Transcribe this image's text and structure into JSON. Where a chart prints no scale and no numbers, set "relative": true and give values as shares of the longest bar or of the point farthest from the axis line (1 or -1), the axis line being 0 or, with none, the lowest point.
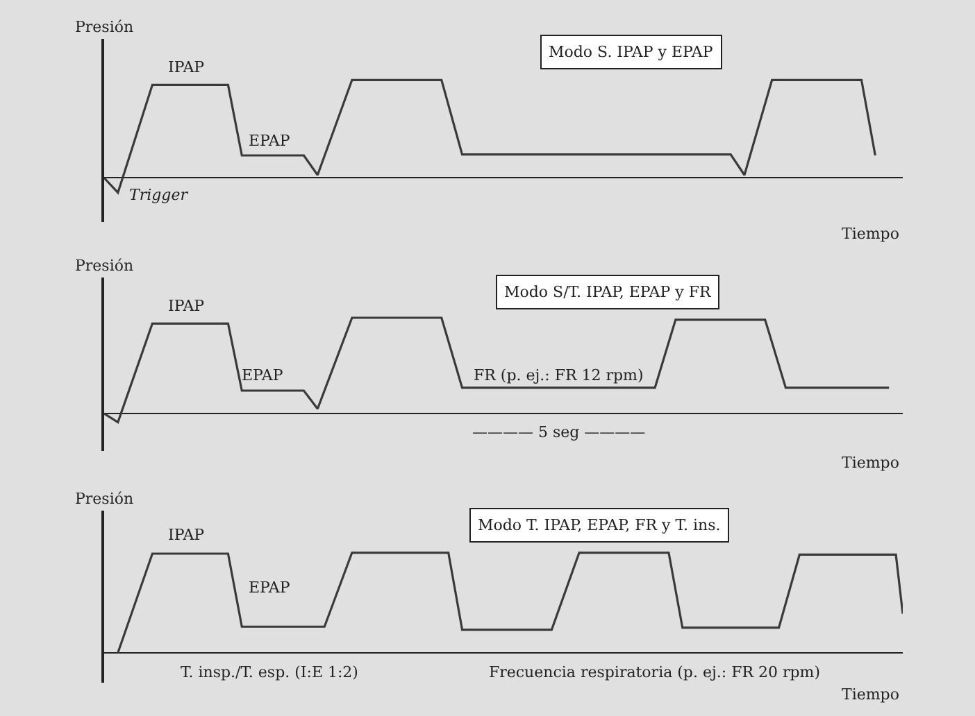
{
  "chart_data": [
    {
      "type": "line",
      "relative": true,
      "title": "Modo S. IPAP y EPAP",
      "xlabel": "Tiempo",
      "ylabel": "Presión",
      "annotations": [
        "IPAP",
        "EPAP",
        "Trigger"
      ],
      "categories": [
        null,
        null,
        null,
        null,
        null,
        null,
        null,
        null,
        null,
        null,
        null,
        null,
        null,
        null,
        null,
        null,
        null,
        null,
        null,
        null,
        null,
        null,
        null,
        null,
        null,
        null,
        null,
        null,
        null,
        null,
        null,
        null,
        null,
        null,
        null,
        null,
        null,
        null,
        null,
        null,
        null,
        null,
        null,
        null,
        null,
        null,
        null,
        null,
        null,
        null,
        null,
        null,
        null,
        null,
        null,
        null,
        null,
        null,
        null,
        null,
        null,
        null,
        null,
        null,
        null,
        null,
        null,
        null,
        null,
        null,
        null,
        null,
        null,
        null,
        null,
        null,
        null,
        null,
        null,
        null,
        null,
        null,
        null,
        null,
        null,
        null,
        null,
        null,
        null,
        null,
        null,
        null,
        null,
        null,
        null,
        null,
        null,
        null,
        null,
        null,
        null,
        null,
        null,
        null,
        null,
        null,
        null,
        null,
        null,
        null,
        null,
        null,
        null,
        null,
        null,
        null,
        null
      ],
      "series": [
        {
          "color": "#3a3a3a",
          "values": [
            0,
            null,
            -0.15,
            null,
            null,
            null,
            null,
            0.95,
            null,
            null,
            null,
            null,
            null,
            null,
            null,
            null,
            null,
            null,
            0.95,
            null,
            0.23,
            null,
            null,
            null,
            null,
            null,
            null,
            null,
            null,
            0.23,
            null,
            0.03,
            null,
            null,
            null,
            null,
            1,
            null,
            null,
            null,
            null,
            null,
            null,
            null,
            null,
            null,
            null,
            null,
            null,
            1,
            null,
            null,
            0.24,
            null,
            null,
            null,
            null,
            null,
            null,
            null,
            null,
            null,
            null,
            null,
            null,
            null,
            null,
            null,
            null,
            null,
            null,
            null,
            null,
            null,
            null,
            null,
            null,
            null,
            null,
            null,
            null,
            null,
            null,
            null,
            null,
            null,
            null,
            null,
            null,
            null,
            null,
            0.24,
            null,
            0.03,
            null,
            null,
            null,
            1,
            null,
            null,
            null,
            null,
            null,
            null,
            null,
            null,
            null,
            null,
            null,
            null,
            1,
            null,
            0.23,
            null,
            null,
            null,
            null
          ]
        }
      ]
    },
    {
      "type": "line",
      "relative": true,
      "title": "Modo S/T. IPAP, EPAP y FR",
      "xlabel": "Tiempo",
      "ylabel": "Presión",
      "annotations": [
        "IPAP",
        "EPAP",
        "FR (p. ej.: FR 12 rpm)",
        "———— 5 seg ————"
      ],
      "categories": [
        null,
        null,
        null,
        null,
        null,
        null,
        null,
        null,
        null,
        null,
        null,
        null,
        null,
        null,
        null,
        null,
        null,
        null,
        null,
        null,
        null,
        null,
        null,
        null,
        null,
        null,
        null,
        null,
        null,
        null,
        null,
        null,
        null,
        null,
        null,
        null,
        null,
        null,
        null,
        null,
        null,
        null,
        null,
        null,
        null,
        null,
        null,
        null,
        null,
        null,
        null,
        null,
        null,
        null,
        null,
        null,
        null,
        null,
        null,
        null,
        null,
        null,
        null,
        null,
        null,
        null,
        null,
        null,
        null,
        null,
        null,
        null,
        null,
        null,
        null,
        null,
        null,
        null,
        null,
        null,
        null,
        null,
        null,
        null,
        null,
        null,
        null,
        null,
        null,
        null,
        null,
        null,
        null,
        null,
        null,
        null,
        null,
        null,
        null,
        null,
        null,
        null,
        null,
        null,
        null,
        null,
        null,
        null,
        null,
        null,
        null,
        null,
        null,
        null,
        null,
        null,
        null
      ],
      "series": [
        {
          "color": "#3a3a3a",
          "values": [
            0,
            null,
            -0.09,
            null,
            null,
            null,
            null,
            0.94,
            null,
            null,
            null,
            null,
            null,
            null,
            null,
            null,
            null,
            null,
            0.94,
            null,
            0.24,
            null,
            null,
            null,
            null,
            null,
            null,
            null,
            null,
            0.24,
            null,
            0.05,
            null,
            null,
            null,
            null,
            1,
            null,
            null,
            null,
            null,
            null,
            null,
            null,
            null,
            null,
            null,
            null,
            null,
            1,
            null,
            null,
            0.27,
            null,
            null,
            null,
            null,
            null,
            null,
            null,
            null,
            null,
            null,
            null,
            null,
            null,
            null,
            null,
            null,
            null,
            null,
            null,
            null,
            null,
            null,
            null,
            null,
            null,
            null,
            null,
            0.27,
            null,
            null,
            0.98,
            null,
            null,
            null,
            null,
            null,
            null,
            null,
            null,
            null,
            null,
            null,
            null,
            0.98,
            null,
            null,
            0.27,
            null,
            null,
            null,
            null,
            null,
            null,
            null,
            null,
            null,
            null,
            null,
            null,
            null,
            null,
            0.27,
            null,
            null
          ]
        }
      ]
    },
    {
      "type": "line",
      "relative": true,
      "title": "Modo T. IPAP, EPAP, FR y T. ins.",
      "xlabel": "Tiempo",
      "ylabel": "Presión",
      "annotations": [
        "IPAP",
        "EPAP",
        "T. insp./T. esp. (I:E 1:2)",
        "Frecuencia respiratoria (p. ej.: FR 20 rpm)"
      ],
      "categories": [
        null,
        null,
        null,
        null,
        null,
        null,
        null,
        null,
        null,
        null,
        null,
        null,
        null,
        null,
        null,
        null,
        null,
        null,
        null,
        null,
        null,
        null,
        null,
        null,
        null,
        null,
        null,
        null,
        null,
        null,
        null,
        null,
        null,
        null,
        null,
        null,
        null,
        null,
        null,
        null,
        null,
        null,
        null,
        null,
        null,
        null,
        null,
        null,
        null,
        null,
        null,
        null,
        null,
        null,
        null,
        null,
        null,
        null,
        null,
        null,
        null,
        null,
        null,
        null,
        null,
        null,
        null,
        null,
        null,
        null,
        null,
        null,
        null,
        null,
        null,
        null,
        null,
        null,
        null,
        null,
        null,
        null,
        null,
        null,
        null,
        null,
        null,
        null,
        null,
        null,
        null,
        null,
        null,
        null,
        null,
        null,
        null,
        null,
        null,
        null,
        null,
        null,
        null,
        null,
        null,
        null,
        null,
        null,
        null,
        null,
        null,
        null,
        null,
        null,
        null,
        null,
        null
      ],
      "series": [
        {
          "color": "#3a3a3a",
          "values": [
            null,
            null,
            0,
            null,
            null,
            null,
            null,
            0.99,
            null,
            null,
            null,
            null,
            null,
            null,
            null,
            null,
            null,
            null,
            0.99,
            null,
            0.26,
            null,
            null,
            null,
            null,
            null,
            null,
            null,
            null,
            null,
            null,
            null,
            0.26,
            null,
            null,
            null,
            1,
            null,
            null,
            null,
            null,
            null,
            null,
            null,
            null,
            null,
            null,
            null,
            null,
            null,
            1,
            null,
            0.23,
            null,
            null,
            null,
            null,
            null,
            null,
            null,
            null,
            null,
            null,
            null,
            null,
            0.23,
            null,
            null,
            null,
            1,
            null,
            null,
            null,
            null,
            null,
            null,
            null,
            null,
            null,
            null,
            null,
            null,
            1,
            null,
            0.25,
            null,
            null,
            null,
            null,
            null,
            null,
            null,
            null,
            null,
            null,
            null,
            null,
            null,
            0.25,
            null,
            null,
            0.98,
            null,
            null,
            null,
            null,
            null,
            null,
            null,
            null,
            null,
            null,
            null,
            null,
            null,
            0.98,
            0.39
          ]
        }
      ]
    }
  ]
}
